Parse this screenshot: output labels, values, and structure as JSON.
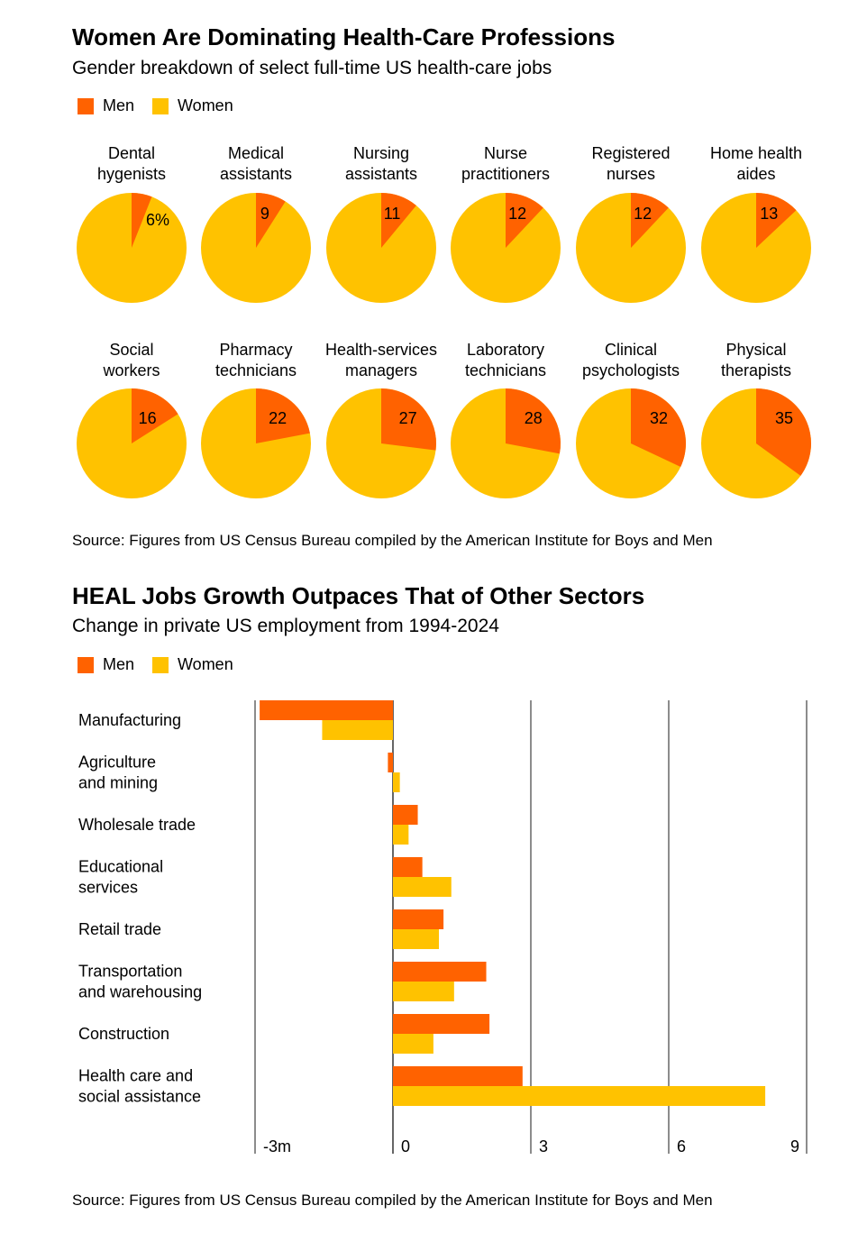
{
  "colors": {
    "men": "#ff6200",
    "women": "#ffc200",
    "grid": "#666666"
  },
  "chart_data": [
    {
      "type": "pie",
      "title": "Women Are Dominating Health-Care Professions",
      "subtitle": "Gender breakdown of select full-time US health-care jobs",
      "legend": [
        "Men",
        "Women"
      ],
      "unit": "% men",
      "categories": [
        {
          "line1": "Dental",
          "line2": "hygenists",
          "men": 6,
          "label": "6%"
        },
        {
          "line1": "Medical",
          "line2": "assistants",
          "men": 9,
          "label": "9"
        },
        {
          "line1": "Nursing",
          "line2": "assistants",
          "men": 11,
          "label": "11"
        },
        {
          "line1": "Nurse",
          "line2": "practitioners",
          "men": 12,
          "label": "12"
        },
        {
          "line1": "Registered",
          "line2": "nurses",
          "men": 12,
          "label": "12"
        },
        {
          "line1": "Home health",
          "line2": "aides",
          "men": 13,
          "label": "13"
        },
        {
          "line1": "Social",
          "line2": "workers",
          "men": 16,
          "label": "16"
        },
        {
          "line1": "Pharmacy",
          "line2": "technicians",
          "men": 22,
          "label": "22"
        },
        {
          "line1": "Health-services",
          "line2": "managers",
          "men": 27,
          "label": "27"
        },
        {
          "line1": "Laboratory",
          "line2": "technicians",
          "men": 28,
          "label": "28"
        },
        {
          "line1": "Clinical",
          "line2": "psychologists",
          "men": 32,
          "label": "32"
        },
        {
          "line1": "Physical",
          "line2": "therapists",
          "men": 35,
          "label": "35"
        }
      ],
      "source": "Source: Figures from US Census Bureau compiled by the American Institute for Boys and Men"
    },
    {
      "type": "bar",
      "orientation": "horizontal",
      "title": "HEAL Jobs Growth Outpaces That of Other Sectors",
      "subtitle": "Change in private US employment from 1994-2024",
      "legend": [
        "Men",
        "Women"
      ],
      "xlim": [
        -3,
        9
      ],
      "xticks": [
        -3,
        0,
        3,
        6,
        9
      ],
      "xtick_labels": [
        "-3m",
        "0",
        "3",
        "6",
        "9"
      ],
      "grid": true,
      "categories": [
        [
          "Manufacturing"
        ],
        [
          "Agriculture",
          "and mining"
        ],
        [
          "Wholesale trade"
        ],
        [
          "Educational",
          "services"
        ],
        [
          "Retail trade"
        ],
        [
          "Transportation",
          "and warehousing"
        ],
        [
          "Construction"
        ],
        [
          "Health care and",
          "social assistance"
        ]
      ],
      "series": [
        {
          "name": "Men",
          "values": [
            -2.9,
            -0.11,
            0.54,
            0.64,
            1.1,
            2.03,
            2.1,
            2.82
          ]
        },
        {
          "name": "Women",
          "values": [
            -1.54,
            0.15,
            0.34,
            1.27,
            1.0,
            1.33,
            0.88,
            8.1
          ]
        }
      ],
      "source": "Source: Figures from US Census Bureau compiled by the American Institute for Boys and Men"
    }
  ]
}
